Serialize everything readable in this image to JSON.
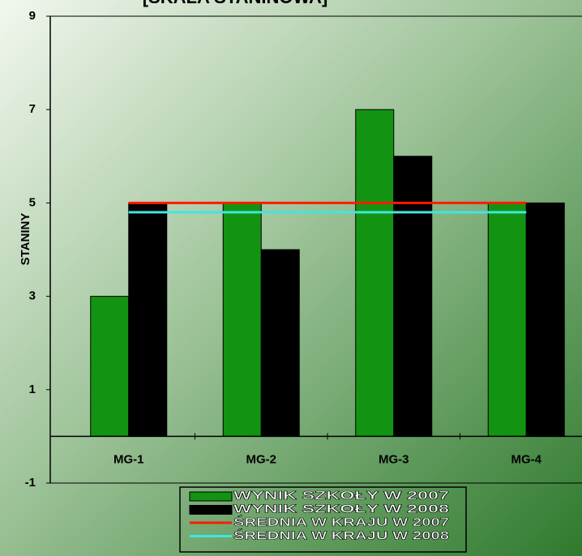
{
  "chart_data": {
    "type": "bar",
    "title": "[SKALA STANINOWA]",
    "y_label": "STANINY",
    "categories": [
      "MG-1",
      "MG-2",
      "MG-3",
      "MG-4"
    ],
    "series": [
      {
        "name": "WYNIK SZKOŁY W 2007",
        "type": "bar",
        "color": "#129412",
        "values": [
          3,
          5,
          7,
          5
        ]
      },
      {
        "name": "WYNIK SZKOŁY W 2008",
        "type": "bar",
        "color": "#000000",
        "values": [
          5,
          4,
          6,
          5
        ]
      },
      {
        "name": "ŚREDNIA W KRAJU W 2007",
        "type": "line",
        "color": "#ff1a00",
        "values": [
          5,
          5,
          5,
          5
        ]
      },
      {
        "name": "ŚREDNIA W KRAJU W 2008",
        "type": "line",
        "color": "#3fe6e0",
        "values": [
          4.8,
          4.8,
          4.8,
          4.8
        ]
      }
    ],
    "ylim": [
      -1,
      9
    ],
    "yticks": [
      -1,
      1,
      3,
      5,
      7,
      9
    ],
    "legend": "bottom"
  }
}
